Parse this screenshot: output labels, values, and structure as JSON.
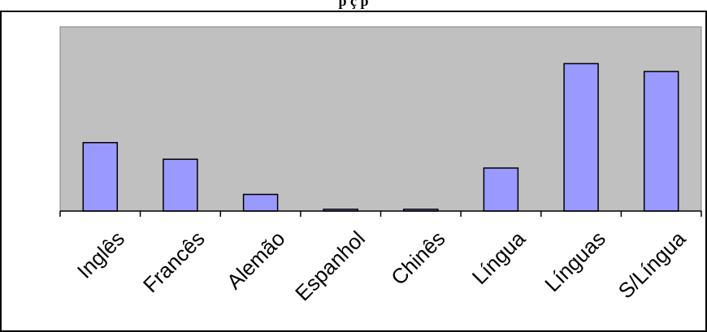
{
  "chart_data": {
    "type": "bar",
    "title": "p                                                                         ç  p",
    "categories": [
      "Inglês",
      "Francês",
      "Alemão",
      "Espanhol",
      "Chinês",
      "Língua",
      "Línguas",
      "S/Língua"
    ],
    "values": [
      39,
      29.5,
      9.5,
      1,
      1,
      24.5,
      84,
      79.5
    ],
    "ylim": [
      0,
      105
    ],
    "grid": false,
    "legend": "none",
    "colors": {
      "plot_background": "#c0c0c0",
      "bar_fill": "#9999ff",
      "bar_stroke": "#000000",
      "axis": "#000000"
    }
  }
}
